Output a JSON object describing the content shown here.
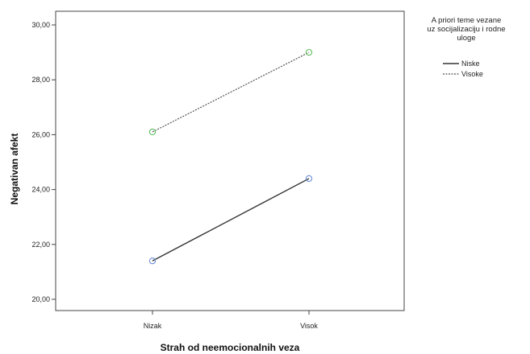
{
  "chart_data": {
    "type": "line",
    "title": "",
    "xlabel": "Strah od neemocionalnih veza",
    "ylabel": "Negativan afekt",
    "categories": [
      "Nizak",
      "Visok"
    ],
    "ylim": [
      20,
      30
    ],
    "yticks": [
      "20,00",
      "22,00",
      "24,00",
      "26,00",
      "28,00",
      "30,00"
    ],
    "ytick_values": [
      20,
      22,
      24,
      26,
      28,
      30
    ],
    "grid": false,
    "legend": {
      "placement": "right",
      "title_lines": [
        "A priori teme vezane",
        "uz socijalizaciju i rodne",
        "uloge"
      ]
    },
    "series": [
      {
        "name": "Niske",
        "values": [
          21.4,
          24.4
        ],
        "line_color": "#333333",
        "line_style": "solid",
        "marker_color": "#6b8fd6"
      },
      {
        "name": "Visoke",
        "values": [
          26.1,
          29.0
        ],
        "line_color": "#555555",
        "line_style": "dotted",
        "marker_color": "#5fbf5f"
      }
    ]
  }
}
